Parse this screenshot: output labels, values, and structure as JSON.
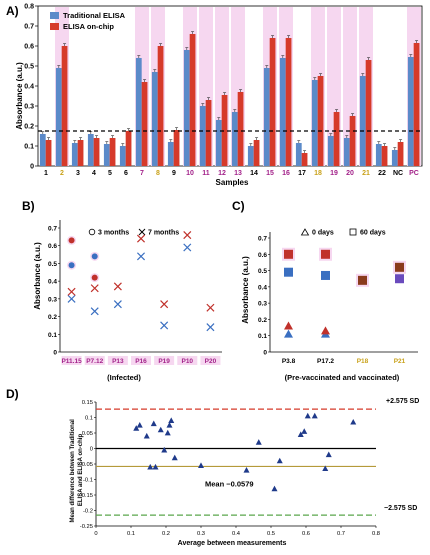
{
  "chart_data": [
    {
      "panel": "A)",
      "type": "bar",
      "ylabel": "Absorbance (a.u.)",
      "xlabel": "Samples",
      "ylim": [
        0,
        0.8
      ],
      "yticks": [
        0,
        0.1,
        0.2,
        0.3,
        0.4,
        0.5,
        0.6,
        0.7,
        0.8
      ],
      "threshold": 0.175,
      "legend": "top-left",
      "categories": [
        "1",
        "2",
        "3",
        "4",
        "5",
        "6",
        "7",
        "8",
        "9",
        "10",
        "11",
        "12",
        "13",
        "14",
        "15",
        "16",
        "17",
        "18",
        "19",
        "20",
        "21",
        "22",
        "NC",
        "PC"
      ],
      "highlighted": [
        "2",
        "7",
        "8",
        "10",
        "11",
        "12",
        "13",
        "15",
        "16",
        "18",
        "19",
        "20",
        "21",
        "PC"
      ],
      "series": [
        {
          "name": "Traditional ELISA",
          "color": "#5b8ac9",
          "values": [
            0.16,
            0.49,
            0.115,
            0.16,
            0.11,
            0.1,
            0.54,
            0.47,
            0.12,
            0.58,
            0.3,
            0.23,
            0.27,
            0.1,
            0.49,
            0.54,
            0.115,
            0.43,
            0.15,
            0.14,
            0.45,
            0.11,
            0.08,
            0.545
          ]
        },
        {
          "name": "ELISA on-chip",
          "color": "#d63a2a",
          "values": [
            0.13,
            0.6,
            0.13,
            0.14,
            0.14,
            0.175,
            0.42,
            0.6,
            0.18,
            0.66,
            0.33,
            0.355,
            0.37,
            0.13,
            0.64,
            0.64,
            0.065,
            0.45,
            0.27,
            0.25,
            0.53,
            0.1,
            0.12,
            0.615
          ]
        }
      ]
    },
    {
      "panel": "B)",
      "type": "scatter",
      "ylabel": "Absorbance (a.u.)",
      "xlabel": "(Infected)",
      "ylim": [
        0,
        0.7
      ],
      "yticks": [
        0,
        0.1,
        0.2,
        0.3,
        0.4,
        0.5,
        0.6,
        0.7
      ],
      "categories": [
        "P11.15",
        "P7.12",
        "P13",
        "P16",
        "P19",
        "P10",
        "P20"
      ],
      "legend": [
        {
          "label": "3 months",
          "marker": "circle"
        },
        {
          "label": "7 months",
          "marker": "cross"
        }
      ],
      "series": [
        {
          "name": "Traditional ELISA, 3 months",
          "marker": "circle",
          "color": "#3a6fc1",
          "values": [
            0.49,
            0.54,
            null,
            null,
            null,
            null,
            null
          ]
        },
        {
          "name": "ELISA on-chip, 3 months",
          "marker": "circle",
          "color": "#c0312b",
          "values": [
            0.63,
            0.42,
            null,
            null,
            null,
            null,
            null
          ]
        },
        {
          "name": "Traditional ELISA, 7 months",
          "marker": "cross",
          "color": "#3a6fc1",
          "values": [
            0.3,
            0.23,
            0.27,
            0.54,
            0.15,
            0.59,
            0.14
          ]
        },
        {
          "name": "ELISA on-chip, 7 months",
          "marker": "cross",
          "color": "#c0312b",
          "values": [
            0.34,
            0.36,
            0.37,
            0.64,
            0.27,
            0.66,
            0.25
          ]
        }
      ]
    },
    {
      "panel": "C)",
      "type": "scatter",
      "ylabel": "Absorbance (a.u.)",
      "xlabel": "(Pre-vaccinated and vaccinated)",
      "ylim": [
        0,
        0.7
      ],
      "yticks": [
        0,
        0.1,
        0.2,
        0.3,
        0.4,
        0.5,
        0.6,
        0.7
      ],
      "categories": [
        "P3.8",
        "P17.2",
        "P18",
        "P21"
      ],
      "legend": [
        {
          "label": "0 days",
          "marker": "triangle"
        },
        {
          "label": "60 days",
          "marker": "square"
        }
      ],
      "series": [
        {
          "name": "Traditional ELISA, 0 days",
          "marker": "triangle",
          "color": "#3a6fc1",
          "values": [
            0.11,
            0.11,
            null,
            null
          ]
        },
        {
          "name": "ELISA on-chip, 0 days",
          "marker": "triangle",
          "color": "#c0312b",
          "values": [
            0.16,
            0.13,
            null,
            null
          ]
        },
        {
          "name": "Traditional ELISA, 60 days",
          "marker": "square",
          "color": "#3a6fc1",
          "values": [
            0.49,
            0.47,
            0.45,
            0.45
          ]
        },
        {
          "name": "ELISA on-chip, 60 days",
          "marker": "square",
          "color": "#c0312b",
          "values": [
            0.6,
            0.6,
            0.44,
            0.52
          ]
        }
      ]
    },
    {
      "panel": "D)",
      "type": "scatter",
      "xlabel": "Average between measurements",
      "ylabel": "Mean difference between Traditional ELISA and ELISA on-chip",
      "xlim": [
        0,
        0.8
      ],
      "ylim": [
        -0.25,
        0.15
      ],
      "xticks": [
        0,
        0.1,
        0.2,
        0.3,
        0.4,
        0.5,
        0.6,
        0.7,
        0.8
      ],
      "yticks": [
        -0.25,
        -0.2,
        -0.15,
        -0.1,
        -0.05,
        0,
        0.05,
        0.1,
        0.15
      ],
      "lines": [
        {
          "label": "+2.575 SD",
          "value": 0.127,
          "color": "#d63a2a"
        },
        {
          "label": "",
          "value": 0,
          "color": "#000000"
        },
        {
          "label": "Mean −0.0579",
          "value": -0.0579,
          "color": "#b59a3a"
        },
        {
          "label": "−2.575 SD",
          "value": -0.215,
          "color": "#5aa64b"
        }
      ],
      "marker_color": "#1f3a8a",
      "points": [
        {
          "x": 0.115,
          "y": 0.065
        },
        {
          "x": 0.125,
          "y": 0.075
        },
        {
          "x": 0.145,
          "y": 0.04
        },
        {
          "x": 0.155,
          "y": -0.06
        },
        {
          "x": 0.165,
          "y": 0.08
        },
        {
          "x": 0.17,
          "y": -0.06
        },
        {
          "x": 0.185,
          "y": 0.06
        },
        {
          "x": 0.195,
          "y": -0.005
        },
        {
          "x": 0.205,
          "y": 0.05
        },
        {
          "x": 0.21,
          "y": 0.075
        },
        {
          "x": 0.215,
          "y": 0.09
        },
        {
          "x": 0.225,
          "y": -0.03
        },
        {
          "x": 0.3,
          "y": -0.055
        },
        {
          "x": 0.43,
          "y": -0.07
        },
        {
          "x": 0.465,
          "y": 0.02
        },
        {
          "x": 0.51,
          "y": -0.13
        },
        {
          "x": 0.525,
          "y": -0.04
        },
        {
          "x": 0.585,
          "y": 0.045
        },
        {
          "x": 0.595,
          "y": 0.055
        },
        {
          "x": 0.605,
          "y": 0.105
        },
        {
          "x": 0.625,
          "y": 0.105
        },
        {
          "x": 0.655,
          "y": -0.065
        },
        {
          "x": 0.665,
          "y": -0.02
        },
        {
          "x": 0.735,
          "y": 0.085
        }
      ]
    }
  ]
}
